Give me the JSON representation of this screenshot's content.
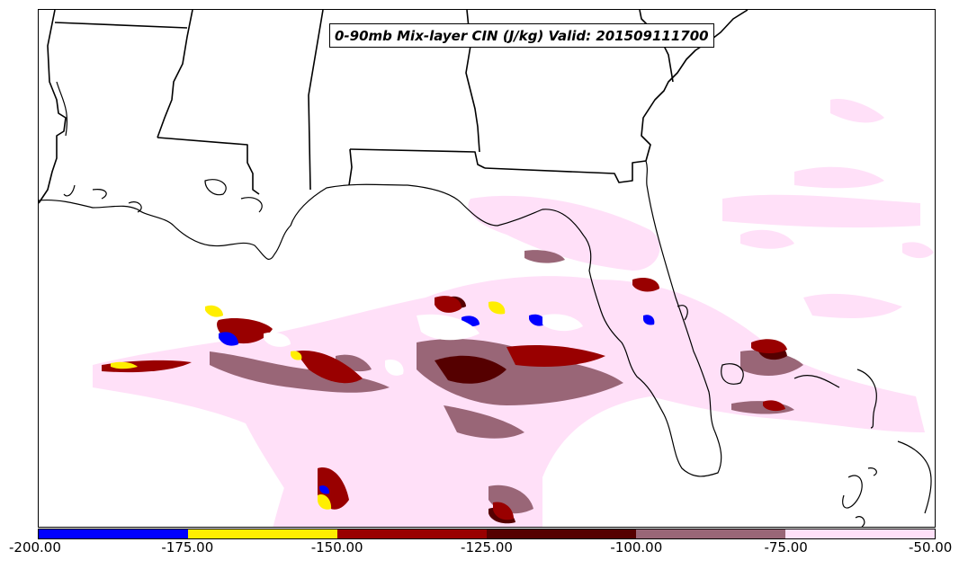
{
  "title": "0-90mb Mix-layer CIN (J/kg) Valid: 201509111700",
  "legend": {
    "ticks": [
      "-200.00",
      "-175.00",
      "-150.00",
      "-125.00",
      "-100.00",
      "-75.00",
      "-50.00"
    ],
    "bins": [
      {
        "range": [
          -200,
          -175
        ],
        "color": "#0000ff"
      },
      {
        "range": [
          -175,
          -150
        ],
        "color": "#ffee00"
      },
      {
        "range": [
          -150,
          -125
        ],
        "color": "#990000"
      },
      {
        "range": [
          -125,
          -100
        ],
        "color": "#550000"
      },
      {
        "range": [
          -100,
          -75
        ],
        "color": "#996677"
      },
      {
        "range": [
          -75,
          -50
        ],
        "color": "#ffe0f8"
      }
    ]
  },
  "colors": {
    "boundary": "#000000",
    "background": "#ffffff"
  }
}
